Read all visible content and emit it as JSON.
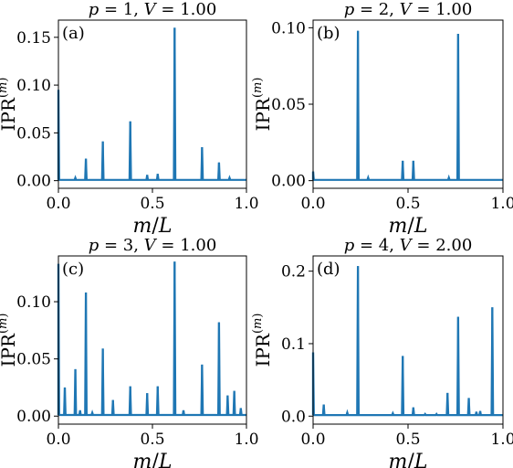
{
  "chart_data": [
    {
      "type": "line",
      "panel_label": "(a)",
      "title": "p = 1, V = 1.00",
      "xlabel": "m/L",
      "ylabel": "IPR(m)",
      "xlim": [
        0,
        1
      ],
      "ylim": [
        -0.008,
        0.168
      ],
      "xticks": [
        0.0,
        0.5,
        1.0
      ],
      "xtick_labels": [
        "0.0",
        "0.5",
        "1.0"
      ],
      "yticks": [
        0.0,
        0.05,
        0.1,
        0.15
      ],
      "ytick_labels": [
        "0.00",
        "0.05",
        "0.10",
        "0.15"
      ],
      "baseline": 0.0008,
      "peaks": [
        [
          0.0,
          0.095
        ],
        [
          0.09,
          0.003
        ],
        [
          0.146,
          0.023
        ],
        [
          0.236,
          0.041
        ],
        [
          0.382,
          0.062
        ],
        [
          0.472,
          0.006
        ],
        [
          0.528,
          0.007
        ],
        [
          0.618,
          0.16
        ],
        [
          0.764,
          0.035
        ],
        [
          0.854,
          0.019
        ],
        [
          0.91,
          0.003
        ]
      ]
    },
    {
      "type": "line",
      "panel_label": "(b)",
      "title": "p = 2, V = 1.00",
      "xlabel": "m/L",
      "ylabel": "IPR(m)",
      "xlim": [
        0,
        1
      ],
      "ylim": [
        -0.005,
        0.105
      ],
      "xticks": [
        0.0,
        0.5,
        1.0
      ],
      "xtick_labels": [
        "0.0",
        "0.5",
        "1.0"
      ],
      "yticks": [
        0.0,
        0.05,
        0.1
      ],
      "ytick_labels": [
        "0.00",
        "0.05",
        "0.10"
      ],
      "baseline": 0.0005,
      "peaks": [
        [
          0.0,
          0.006
        ],
        [
          0.236,
          0.098
        ],
        [
          0.29,
          0.002
        ],
        [
          0.472,
          0.013
        ],
        [
          0.528,
          0.013
        ],
        [
          0.715,
          0.002
        ],
        [
          0.764,
          0.096
        ]
      ]
    },
    {
      "type": "line",
      "panel_label": "(c)",
      "title": "p = 3, V = 1.00",
      "xlabel": "m/L",
      "ylabel": "IPR(m)",
      "xlim": [
        0,
        1
      ],
      "ylim": [
        -0.007,
        0.14
      ],
      "xticks": [
        0.0,
        0.5,
        1.0
      ],
      "xtick_labels": [
        "0.0",
        "0.5",
        "1.0"
      ],
      "yticks": [
        0.0,
        0.05,
        0.1
      ],
      "ytick_labels": [
        "0.00",
        "0.05",
        "0.10"
      ],
      "baseline": 0.001,
      "peaks": [
        [
          0.0,
          0.133
        ],
        [
          0.034,
          0.025
        ],
        [
          0.09,
          0.041
        ],
        [
          0.115,
          0.005
        ],
        [
          0.146,
          0.108
        ],
        [
          0.18,
          0.003
        ],
        [
          0.236,
          0.059
        ],
        [
          0.29,
          0.014
        ],
        [
          0.382,
          0.026
        ],
        [
          0.472,
          0.02
        ],
        [
          0.528,
          0.026
        ],
        [
          0.618,
          0.135
        ],
        [
          0.665,
          0.005
        ],
        [
          0.764,
          0.045
        ],
        [
          0.854,
          0.082
        ],
        [
          0.9,
          0.018
        ],
        [
          0.935,
          0.022
        ],
        [
          0.97,
          0.007
        ]
      ]
    },
    {
      "type": "line",
      "panel_label": "(d)",
      "title": "p = 4, V = 2.00",
      "xlabel": "m/L",
      "ylabel": "IPR(m)",
      "xlim": [
        0,
        1
      ],
      "ylim": [
        -0.011,
        0.221
      ],
      "xticks": [
        0.0,
        0.5,
        1.0
      ],
      "xtick_labels": [
        "0.0",
        "0.5",
        "1.0"
      ],
      "yticks": [
        0.0,
        0.1,
        0.2
      ],
      "ytick_labels": [
        "0.0",
        "0.1",
        "0.2"
      ],
      "baseline": 0.0015,
      "peaks": [
        [
          0.0,
          0.088
        ],
        [
          0.056,
          0.016
        ],
        [
          0.18,
          0.005
        ],
        [
          0.236,
          0.207
        ],
        [
          0.42,
          0.004
        ],
        [
          0.472,
          0.083
        ],
        [
          0.528,
          0.012
        ],
        [
          0.59,
          0.003
        ],
        [
          0.65,
          0.003
        ],
        [
          0.708,
          0.032
        ],
        [
          0.764,
          0.137
        ],
        [
          0.82,
          0.025
        ],
        [
          0.86,
          0.006
        ],
        [
          0.88,
          0.007
        ],
        [
          0.944,
          0.15
        ]
      ]
    }
  ]
}
